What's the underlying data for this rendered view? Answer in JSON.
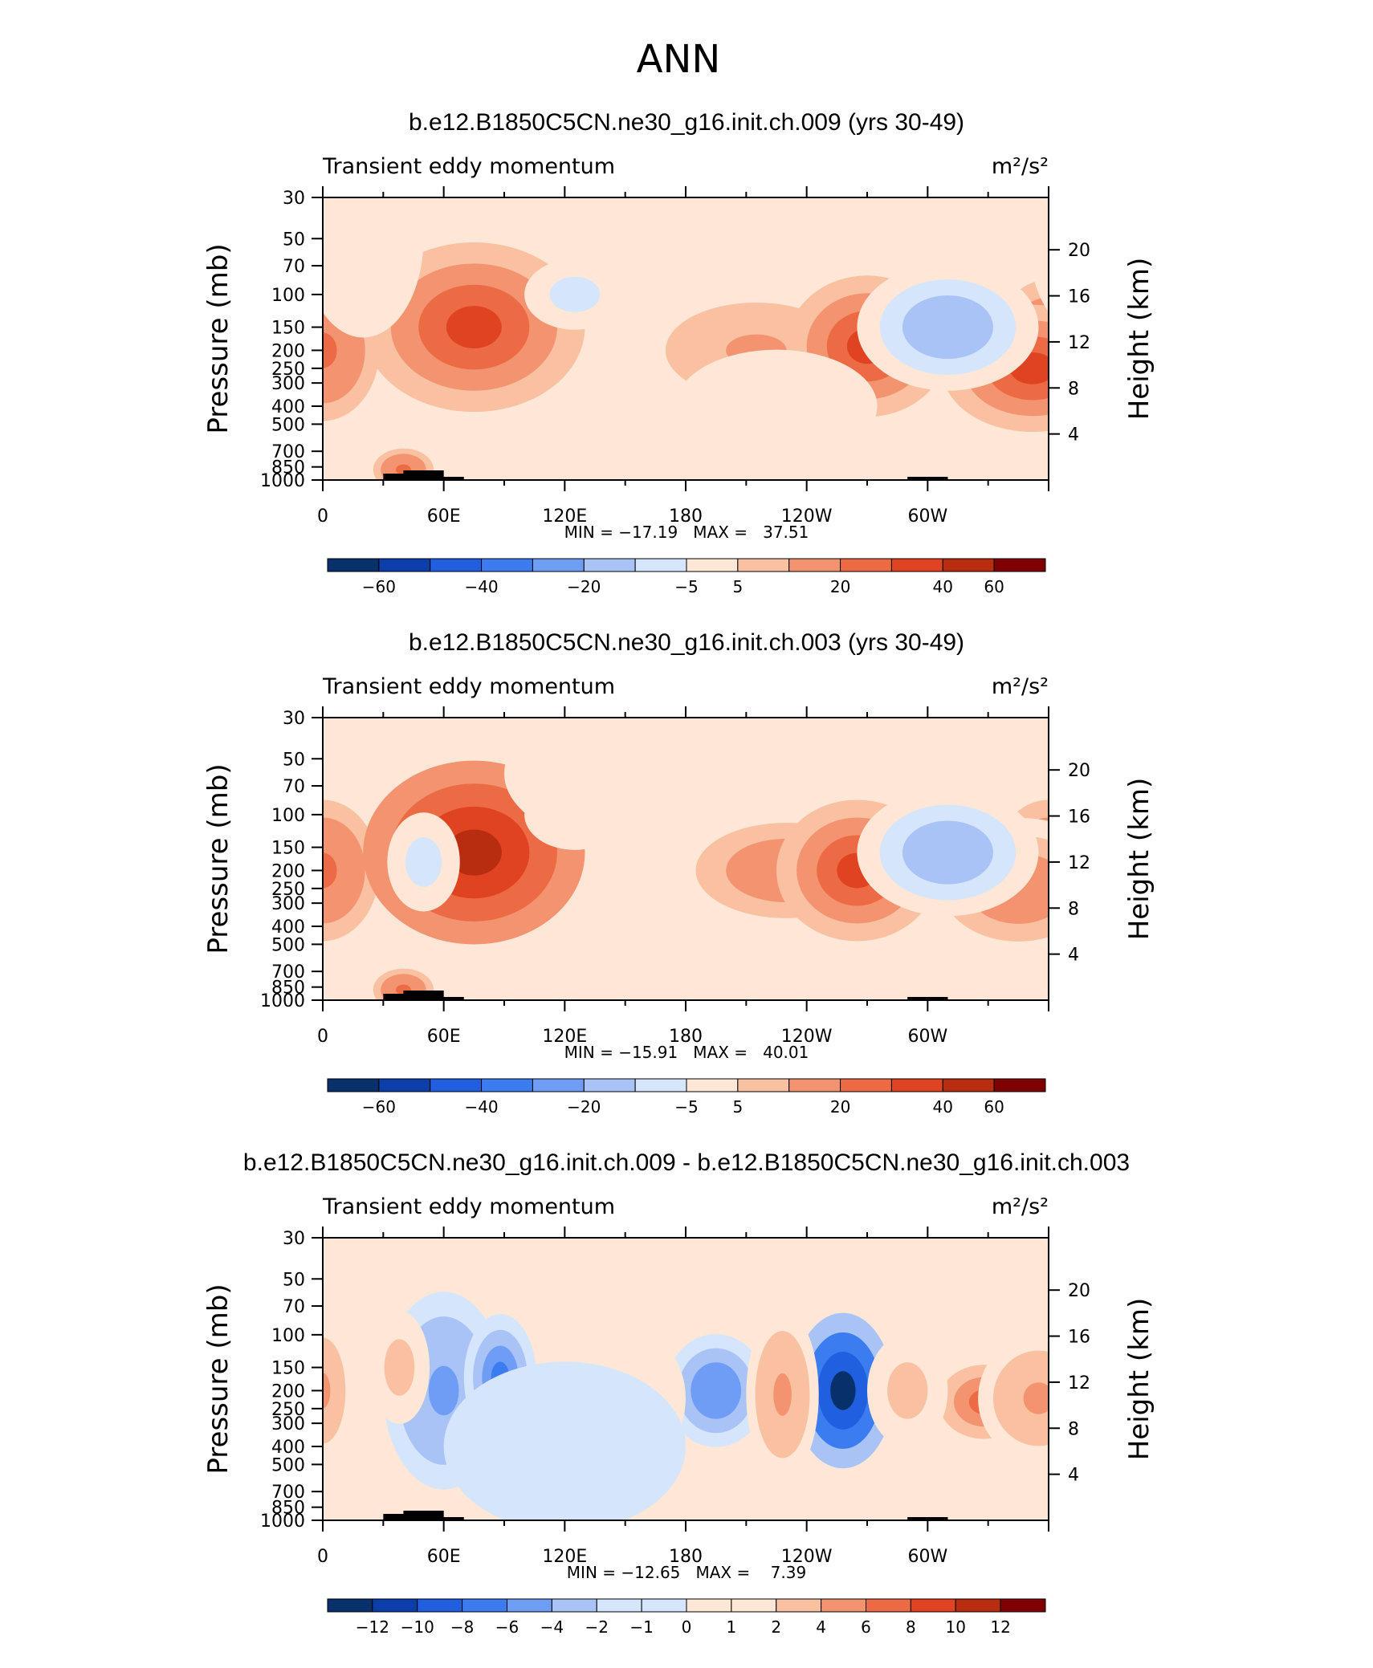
{
  "figure_title": "ANN",
  "colors": {
    "blues": [
      "#08306b",
      "#0b3ea8",
      "#1f5fe0",
      "#3b7cf0",
      "#6f9cf5",
      "#a9c3f7",
      "#d5e5fb"
    ],
    "reds": [
      "#fee7d6",
      "#f9c0a2",
      "#f3936f",
      "#ec6b44",
      "#e04322",
      "#b82c10",
      "#800000"
    ]
  },
  "chart_data": [
    {
      "type": "contour",
      "title": "b.e12.B1850C5CN.ne30_g16.init.ch.009 (yrs 30-49)",
      "subtitle": "Transient eddy momentum",
      "units": "m²/s²",
      "ylabel": "Pressure (mb)",
      "ylabel_right": "Height (km)",
      "x_ticks": [
        "0",
        "60E",
        "120E",
        "180",
        "120W",
        "60W"
      ],
      "x_tick_lon": [
        0,
        60,
        120,
        180,
        240,
        300
      ],
      "y_ticks": [
        "30",
        "50",
        "70",
        "100",
        "150",
        "200",
        "250",
        "300",
        "400",
        "500",
        "700",
        "850",
        "1000"
      ],
      "y_tick_p": [
        30,
        50,
        70,
        100,
        150,
        200,
        250,
        300,
        400,
        500,
        700,
        850,
        1000
      ],
      "y_ticks_right": [
        "20",
        "16",
        "12",
        "8",
        "4"
      ],
      "y_tick_z": [
        20,
        16,
        12,
        8,
        4
      ],
      "stats": "MIN = −17.19   MAX =   37.51",
      "min": -17.19,
      "max": 37.51,
      "colorbar_labels": [
        "−60",
        "−40",
        "−20",
        "−5",
        "5",
        "20",
        "40",
        "60"
      ],
      "colorbar_values": [
        -70,
        -60,
        -50,
        -40,
        -30,
        -20,
        -10,
        -5,
        5,
        10,
        20,
        30,
        40,
        50,
        60,
        70
      ]
    },
    {
      "type": "contour",
      "title": "b.e12.B1850C5CN.ne30_g16.init.ch.003 (yrs 30-49)",
      "subtitle": "Transient eddy momentum",
      "units": "m²/s²",
      "ylabel": "Pressure (mb)",
      "ylabel_right": "Height (km)",
      "x_ticks": [
        "0",
        "60E",
        "120E",
        "180",
        "120W",
        "60W"
      ],
      "x_tick_lon": [
        0,
        60,
        120,
        180,
        240,
        300
      ],
      "y_ticks": [
        "30",
        "50",
        "70",
        "100",
        "150",
        "200",
        "250",
        "300",
        "400",
        "500",
        "700",
        "850",
        "1000"
      ],
      "y_tick_p": [
        30,
        50,
        70,
        100,
        150,
        200,
        250,
        300,
        400,
        500,
        700,
        850,
        1000
      ],
      "y_ticks_right": [
        "20",
        "16",
        "12",
        "8",
        "4"
      ],
      "y_tick_z": [
        20,
        16,
        12,
        8,
        4
      ],
      "stats": "MIN = −15.91   MAX =   40.01",
      "min": -15.91,
      "max": 40.01,
      "colorbar_labels": [
        "−60",
        "−40",
        "−20",
        "−5",
        "5",
        "20",
        "40",
        "60"
      ],
      "colorbar_values": [
        -70,
        -60,
        -50,
        -40,
        -30,
        -20,
        -10,
        -5,
        5,
        10,
        20,
        30,
        40,
        50,
        60,
        70
      ]
    },
    {
      "type": "contour",
      "title": "b.e12.B1850C5CN.ne30_g16.init.ch.009 - b.e12.B1850C5CN.ne30_g16.init.ch.003",
      "subtitle": "Transient eddy momentum",
      "units": "m²/s²",
      "ylabel": "Pressure (mb)",
      "ylabel_right": "Height (km)",
      "x_ticks": [
        "0",
        "60E",
        "120E",
        "180",
        "120W",
        "60W"
      ],
      "x_tick_lon": [
        0,
        60,
        120,
        180,
        240,
        300
      ],
      "y_ticks": [
        "30",
        "50",
        "70",
        "100",
        "150",
        "200",
        "250",
        "300",
        "400",
        "500",
        "700",
        "850",
        "1000"
      ],
      "y_tick_p": [
        30,
        50,
        70,
        100,
        150,
        200,
        250,
        300,
        400,
        500,
        700,
        850,
        1000
      ],
      "y_ticks_right": [
        "20",
        "16",
        "12",
        "8",
        "4"
      ],
      "y_tick_z": [
        20,
        16,
        12,
        8,
        4
      ],
      "stats": "MIN = −12.65   MAX =    7.39",
      "min": -12.65,
      "max": 7.39,
      "colorbar_labels": [
        "−12",
        "−10",
        "−8",
        "−6",
        "−4",
        "−2",
        "−1",
        "0",
        "1",
        "2",
        "4",
        "6",
        "8",
        "10",
        "12"
      ],
      "colorbar_values": [
        -14,
        -12,
        -10,
        -8,
        -6,
        -4,
        -2,
        -1,
        0,
        1,
        2,
        4,
        6,
        8,
        10,
        12,
        14
      ]
    }
  ],
  "panel_features": [
    [
      {
        "lon": 0,
        "p": 200,
        "lw": 28,
        "lh": 0.5,
        "v": 25
      },
      {
        "lon": 75,
        "p": 150,
        "lw": 55,
        "lh": 0.6,
        "v": 37
      },
      {
        "lon": 215,
        "p": 200,
        "lw": 60,
        "lh": 0.45,
        "v": 12
      },
      {
        "lon": 270,
        "p": 190,
        "lw": 40,
        "lh": 0.5,
        "v": 30
      },
      {
        "lon": 352,
        "p": 250,
        "lw": 45,
        "lh": 0.45,
        "v": 30
      },
      {
        "lon": 310,
        "p": 150,
        "lw": 45,
        "lh": 0.45,
        "v": -17
      },
      {
        "lon": 125,
        "p": 100,
        "lw": 25,
        "lh": 0.25,
        "v": -8
      },
      {
        "lon": 40,
        "p": 880,
        "lw": 15,
        "lh": 0.15,
        "v": 22
      },
      {
        "lon": 20,
        "p": 50,
        "lw": 30,
        "lh": 0.7,
        "v": -3
      },
      {
        "lon": 225,
        "p": 400,
        "lw": 50,
        "lh": 0.4,
        "v": -3
      }
    ],
    [
      {
        "lon": 0,
        "p": 200,
        "lw": 28,
        "lh": 0.5,
        "v": 25
      },
      {
        "lon": 75,
        "p": 160,
        "lw": 55,
        "lh": 0.65,
        "v": 40
      },
      {
        "lon": 230,
        "p": 200,
        "lw": 60,
        "lh": 0.45,
        "v": 15
      },
      {
        "lon": 265,
        "p": 200,
        "lw": 40,
        "lh": 0.5,
        "v": 33
      },
      {
        "lon": 345,
        "p": 250,
        "lw": 50,
        "lh": 0.5,
        "v": 18
      },
      {
        "lon": 310,
        "p": 160,
        "lw": 45,
        "lh": 0.45,
        "v": -16
      },
      {
        "lon": 125,
        "p": 100,
        "lw": 25,
        "lh": 0.25,
        "v": -8
      },
      {
        "lon": 40,
        "p": 880,
        "lw": 15,
        "lh": 0.15,
        "v": 22
      },
      {
        "lon": 50,
        "p": 180,
        "lw": 18,
        "lh": 0.35,
        "v": -8
      },
      {
        "lon": 150,
        "p": 60,
        "lw": 60,
        "lh": 0.5,
        "v": -3
      }
    ],
    [
      {
        "lon": 60,
        "p": 200,
        "lw": 30,
        "lh": 0.7,
        "v": -5
      },
      {
        "lon": 88,
        "p": 170,
        "lw": 18,
        "lh": 0.45,
        "v": -7
      },
      {
        "lon": 195,
        "p": 200,
        "lw": 25,
        "lh": 0.4,
        "v": -6
      },
      {
        "lon": 258,
        "p": 200,
        "lw": 25,
        "lh": 0.55,
        "v": -12.6
      },
      {
        "lon": 228,
        "p": 210,
        "lw": 18,
        "lh": 0.6,
        "v": 4
      },
      {
        "lon": 0,
        "p": 200,
        "lw": 15,
        "lh": 0.5,
        "v": 4
      },
      {
        "lon": 38,
        "p": 150,
        "lw": 15,
        "lh": 0.4,
        "v": 3
      },
      {
        "lon": 328,
        "p": 230,
        "lw": 30,
        "lh": 0.35,
        "v": 6
      },
      {
        "lon": 355,
        "p": 220,
        "lw": 30,
        "lh": 0.45,
        "v": 5
      },
      {
        "lon": 290,
        "p": 200,
        "lw": 20,
        "lh": 0.4,
        "v": 3
      },
      {
        "lon": 150,
        "p": 220,
        "lw": 30,
        "lh": 0.5,
        "v": 2
      },
      {
        "lon": 120,
        "p": 400,
        "lw": 60,
        "lh": 0.6,
        "v": -1.5
      }
    ]
  ]
}
